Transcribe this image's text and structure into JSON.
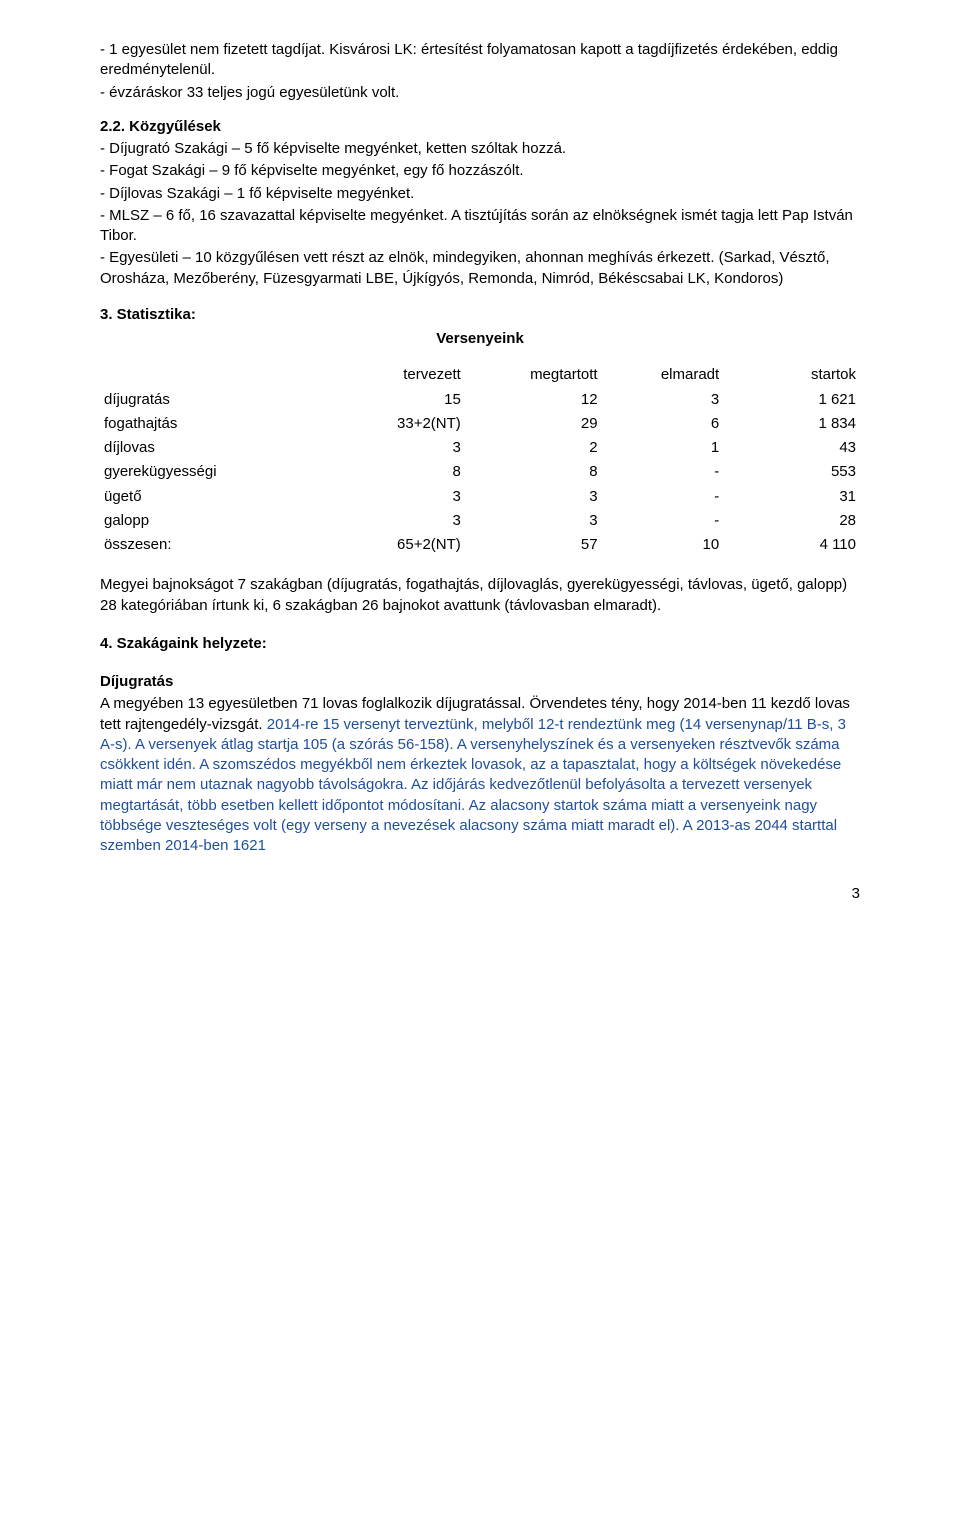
{
  "page_number": "3",
  "section1": {
    "lines": [
      "- 1 egyesület nem fizetett tagdíjat. Kisvárosi LK: értesítést folyamatosan kapott a tagdíjfizetés érdekében, eddig eredménytelenül.",
      "- évzáráskor 33 teljes jogú egyesületünk volt."
    ]
  },
  "section2": {
    "heading": "2.2. Közgyűlések",
    "lines": [
      "- Díjugrató Szakági – 5 fő képviselte megyénket, ketten szóltak hozzá.",
      "- Fogat Szakági – 9 fő képviselte megyénket, egy fő hozzászólt.",
      "- Díjlovas Szakági – 1 fő képviselte megyénket.",
      "- MLSZ – 6 fő, 16 szavazattal képviselte megyénket. A tisztújítás során az elnökségnek ismét tagja lett Pap István Tibor.",
      "- Egyesületi – 10 közgyűlésen vett részt az elnök, mindegyiken, ahonnan meghívás érkezett. (Sarkad, Vésztő, Orosháza, Mezőberény, Füzesgyarmati LBE, Újkígyós, Remonda, Nimród, Békéscsabai LK, Kondoros)"
    ]
  },
  "stats": {
    "heading": "3.        Statisztika:",
    "subtitle": "Versenyeink",
    "columns": [
      "",
      "tervezett",
      "megtartott",
      "elmaradt",
      "startok"
    ],
    "rows": [
      [
        "díjugratás",
        "15",
        "12",
        "3",
        "1 621"
      ],
      [
        "fogathajtás",
        "33+2(NT)",
        "29",
        "6",
        "1 834"
      ],
      [
        "díjlovas",
        "3",
        "2",
        "1",
        "43"
      ],
      [
        "gyerekügyességi",
        "8",
        "8",
        "-",
        "553"
      ],
      [
        "ügető",
        "3",
        "3",
        "-",
        "31"
      ],
      [
        "galopp",
        "3",
        "3",
        "-",
        "28"
      ]
    ],
    "total": [
      "összesen:",
      "65+2(NT)",
      "57",
      "10",
      "4 110"
    ]
  },
  "para_after_table": "Megyei bajnokságot 7 szakágban (díjugratás, fogathajtás, díjlovaglás, gyerekügyességi, távlovas, ügető, galopp) 28 kategóriában írtunk ki, 6 szakágban 26 bajnokot avattunk (távlovasban elmaradt).",
  "section4": {
    "heading": "4. Szakágaink helyzete:"
  },
  "dijugratas": {
    "heading": "Díjugratás",
    "body_black1": "A megyében 13 egyesületben 71 lovas foglalkozik díjugratással. Örvendetes tény, hogy 2014-ben 11 kezdő lovas tett rajtengedély-vizsgát. ",
    "body_blue": "2014-re 15 versenyt terveztünk, melyből 12-t rendeztünk meg (14 versenynap/11 B-s, 3 A-s). A versenyek átlag startja 105 (a szórás 56-158). A versenyhelyszínek és a versenyeken résztvevők száma csökkent idén. A szomszédos megyékből nem érkeztek lovasok, az a tapasztalat, hogy a költségek növekedése miatt már nem utaznak nagyobb távolságokra. Az időjárás kedvezőtlenül befolyásolta a tervezett versenyek megtartását, több esetben kellett időpontot módosítani. Az alacsony startok száma miatt a versenyeink nagy többsége veszteséges volt (egy verseny a nevezések alacsony száma miatt maradt el). A 2013-as 2044 starttal szemben 2014-ben 1621"
  }
}
